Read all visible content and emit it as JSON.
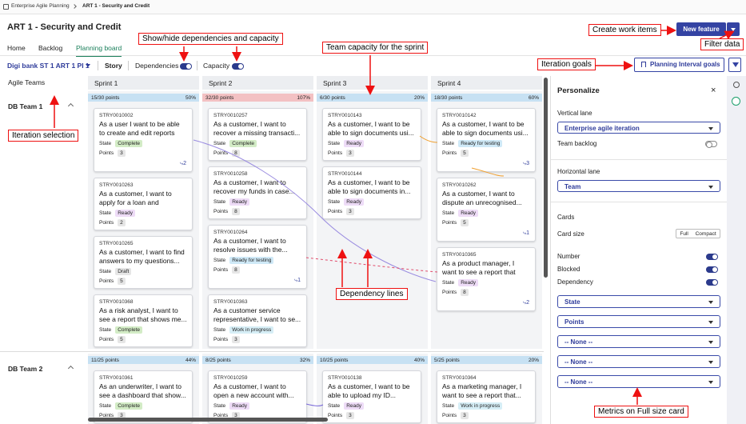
{
  "breadcrumb": [
    "Enterprise Agile Planning",
    "ART 1 - Security and Credit"
  ],
  "header": {
    "title": "ART 1 - Security and Credit",
    "new_button": "New feature"
  },
  "tabs": {
    "items": [
      "Home",
      "Backlog",
      "Planning board"
    ],
    "active": 2
  },
  "toolbar": {
    "iteration": "Digi bank ST 1 ART 1 PI 1",
    "view": "Story",
    "toggles": [
      {
        "label": "Dependencies",
        "on": true
      },
      {
        "label": "Capacity",
        "on": true
      }
    ],
    "goals_button": "Planning Interval goals"
  },
  "board": {
    "lane_header": "Agile Teams",
    "sprints": [
      "Sprint 1",
      "Sprint 2",
      "Sprint 3",
      "Sprint 4"
    ],
    "labels": {
      "state": "State",
      "points": "Points"
    },
    "state_colors": {
      "Complete": "#d3ecc6",
      "Ready": "#eedcf7",
      "Draft": "#e6e6e6",
      "Ready for testing": "#cfe9f7",
      "Work in progress": "#d6eef6"
    },
    "teams": [
      {
        "name": "DB Team 1",
        "capacity": [
          {
            "load": "15/30 points",
            "percent": "50%"
          },
          {
            "load": "32/30 points",
            "percent": "107%"
          },
          {
            "load": "6/30 points",
            "percent": "20%"
          },
          {
            "load": "18/30 points",
            "percent": "60%"
          }
        ],
        "columns": [
          [
            {
              "id": "STRY0010002",
              "title": "As a user I want to be able to create and edit reports",
              "state": "Complete",
              "points": 3,
              "deps": 2
            },
            {
              "id": "STRY0010263",
              "title": "As a customer, I want to apply for a loan and receive...",
              "state": "Ready",
              "points": 2
            },
            {
              "id": "STRY0010265",
              "title": "As a customer, I want to find answers to my questions...",
              "state": "Draft",
              "points": 5
            },
            {
              "id": "STRY0010368",
              "title": "As a risk analyst, I want to see a report that shows me...",
              "state": "Complete",
              "points": 5
            }
          ],
          [
            {
              "id": "STRY0010257",
              "title": "As a customer, I want to recover a missing transacti...",
              "state": "Complete",
              "points": 8
            },
            {
              "id": "STRY0010258",
              "title": "As a customer, I want to recover my funds in case...",
              "state": "Ready",
              "points": 8
            },
            {
              "id": "STRY0010264",
              "title": "As a customer, I want to resolve issues with the...",
              "state": "Ready for testing",
              "points": 8,
              "deps": 1
            },
            {
              "id": "STRY0010363",
              "title": "As a customer service representative, I want to se...",
              "state": "Work in progress",
              "points": 3
            }
          ],
          [
            {
              "id": "STRY0010143",
              "title": "As a customer, I want to be able to sign documents usi...",
              "state": "Ready",
              "points": 3
            },
            {
              "id": "STRY0010144",
              "title": "As a customer, I want to be able to sign documents in...",
              "state": "Ready",
              "points": 3
            }
          ],
          [
            {
              "id": "STRY0010142",
              "title": "As a customer, I want to be able to sign documents usi...",
              "state": "Ready for testing",
              "points": 5,
              "deps": 3
            },
            {
              "id": "STRY0010262",
              "title": "As a customer, I want to dispute an unrecognised...",
              "state": "Ready",
              "points": 5,
              "deps": 1
            },
            {
              "id": "STRY0010365",
              "title": "As a product manager, I want to see a report that shows...",
              "state": "Ready",
              "points": 8,
              "deps": 2
            }
          ]
        ]
      },
      {
        "name": "DB Team 2",
        "capacity": [
          {
            "load": "11/25 points",
            "percent": "44%"
          },
          {
            "load": "8/25 points",
            "percent": "32%"
          },
          {
            "load": "10/25 points",
            "percent": "40%"
          },
          {
            "load": "5/25 points",
            "percent": "20%"
          }
        ],
        "columns": [
          [
            {
              "id": "STRY0010361",
              "title": "As an underwriter, I want to see a dashboard that show...",
              "state": "Complete",
              "points": 3
            }
          ],
          [
            {
              "id": "STRY0010259",
              "title": "As a customer, I want to open a new account with...",
              "state": "Ready",
              "points": 3
            }
          ],
          [
            {
              "id": "STRY0010138",
              "title": "As a customer, I want to be able to upload my ID...",
              "state": "Ready",
              "points": 3
            }
          ],
          [
            {
              "id": "STRY0010364",
              "title": "As a marketing manager, I want to see a report that...",
              "state": "Work in progress",
              "points": 3
            }
          ]
        ]
      }
    ]
  },
  "personalize": {
    "title": "Personalize",
    "vertical_lane": {
      "label": "Vertical lane",
      "value": "Enterprise agile iteration"
    },
    "team_backlog": {
      "label": "Team backlog",
      "on": false
    },
    "horizontal_lane": {
      "label": "Horizontal lane",
      "value": "Team"
    },
    "cards": {
      "title": "Cards",
      "size_label": "Card size",
      "sizes": [
        "Full",
        "Compact"
      ],
      "toggles": [
        {
          "label": "Number",
          "on": true
        },
        {
          "label": "Blocked",
          "on": true
        },
        {
          "label": "Dependency",
          "on": true
        }
      ],
      "metrics": [
        "State",
        "Points",
        "-- None --",
        "-- None --",
        "-- None --"
      ]
    }
  },
  "annotations": [
    "Create work items",
    "Filter data",
    "Show/hide dependencies and capacity",
    "Team capacity for the sprint",
    "Iteration goals",
    "Iteration selection",
    "Dependency lines",
    "Metrics on Full size card"
  ]
}
